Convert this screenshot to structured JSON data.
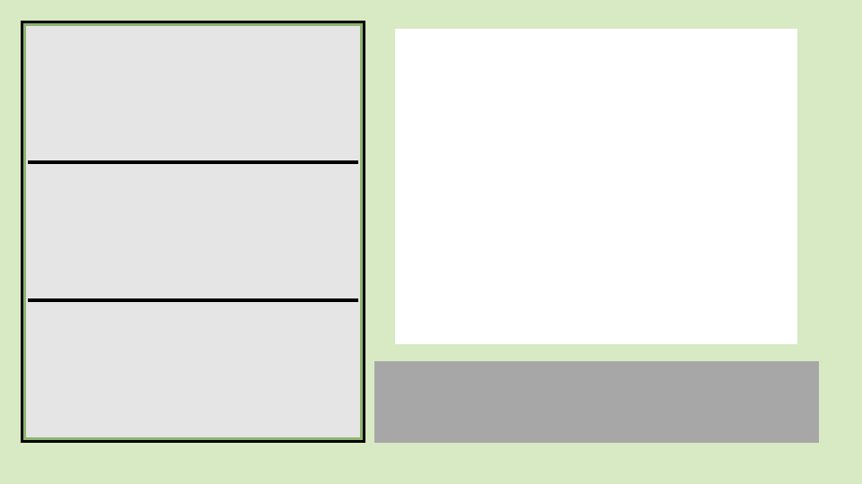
{
  "left_panel": {
    "slots": [
      {
        "label": ""
      },
      {
        "label": ""
      },
      {
        "label": ""
      }
    ]
  },
  "preview_pane": {
    "content": ""
  },
  "action_bar": {
    "label": ""
  },
  "colors": {
    "background": "#d7eac3",
    "panel_fill": "#e5e5e5",
    "panel_border": "#000000",
    "panel_inner_border": "#8db36f",
    "preview_fill": "#ffffff",
    "action_bar_fill": "#a7a7a7"
  }
}
